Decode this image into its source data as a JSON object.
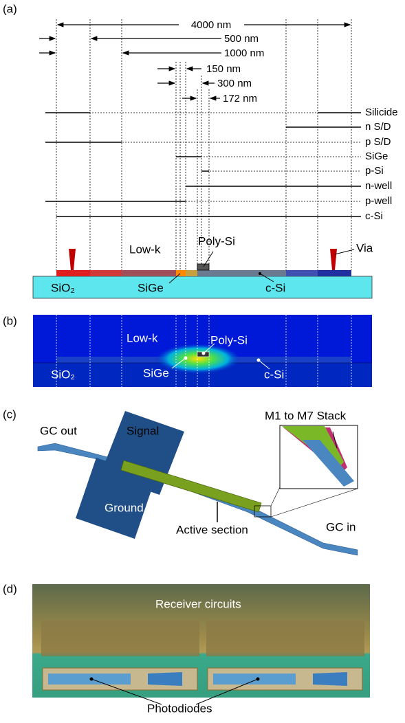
{
  "panel_a": {
    "label": "(a)",
    "dimensions": [
      "4000 nm",
      "500 nm",
      "1000 nm",
      "150 nm",
      "300 nm",
      "172 nm"
    ],
    "layers": [
      "Silicide",
      "n S/D",
      "p S/D",
      "SiGe",
      "p-Si",
      "n-well",
      "p-well",
      "c-Si"
    ],
    "cross_section": {
      "low_k": "Low-k",
      "poly_si": "Poly-Si",
      "via": "Via",
      "sio2": "SiO₂",
      "sige": "SiGe",
      "c_si": "c-Si"
    }
  },
  "panel_b": {
    "label": "(b)",
    "low_k": "Low-k",
    "poly_si": "Poly-Si",
    "sio2": "SiO₂",
    "sige": "SiGe",
    "c_si": "c-Si"
  },
  "panel_c": {
    "label": "(c)",
    "gc_out": "GC out",
    "signal": "Signal",
    "ground": "Ground",
    "active_section": "Active section",
    "gc_in": "GC in",
    "stack": "M1 to M7 Stack"
  },
  "panel_d": {
    "label": "(d)",
    "receiver": "Receiver circuits",
    "photodiodes": "Photodiodes"
  }
}
